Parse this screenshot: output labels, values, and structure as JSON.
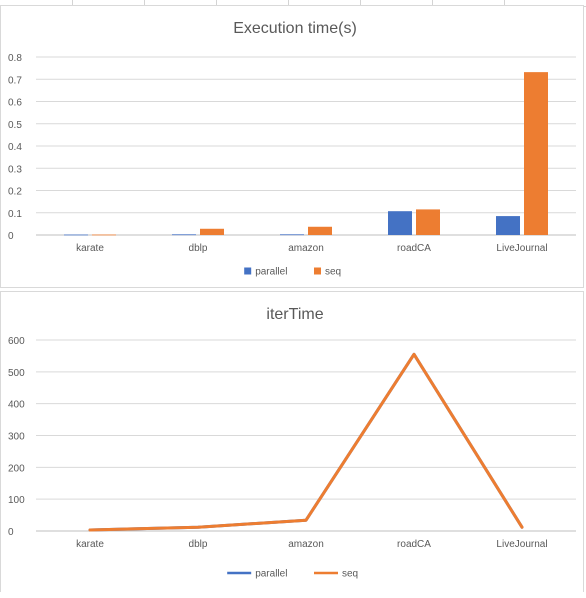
{
  "chart_data": [
    {
      "type": "bar",
      "title": "Execution time(s)",
      "categories": [
        "karate",
        "dblp",
        "amazon",
        "roadCA",
        "LiveJournal"
      ],
      "series": [
        {
          "name": "parallel",
          "values": [
            0.002,
            0.003,
            0.003,
            0.107,
            0.085
          ]
        },
        {
          "name": "seq",
          "values": [
            0.002,
            0.028,
            0.037,
            0.115,
            0.732
          ]
        }
      ],
      "ylim": [
        0,
        0.8
      ],
      "yticks": [
        "0",
        "0.1",
        "0.2",
        "0.3",
        "0.4",
        "0.5",
        "0.6",
        "0.7",
        "0.8"
      ],
      "grid": true,
      "legend_position": "bottom",
      "colors": {
        "parallel": "#4472c4",
        "seq": "#ed7d31"
      }
    },
    {
      "type": "line",
      "title": "iterTime",
      "categories": [
        "karate",
        "dblp",
        "amazon",
        "roadCA",
        "LiveJournal"
      ],
      "series": [
        {
          "name": "parallel",
          "values": [
            3,
            12,
            34,
            555,
            12
          ]
        },
        {
          "name": "seq",
          "values": [
            3,
            12,
            34,
            555,
            12
          ]
        }
      ],
      "ylim": [
        0,
        600
      ],
      "yticks": [
        "0",
        "100",
        "200",
        "300",
        "400",
        "500",
        "600"
      ],
      "grid": true,
      "legend_position": "bottom",
      "colors": {
        "parallel": "#4472c4",
        "seq": "#ed7d31"
      }
    }
  ]
}
